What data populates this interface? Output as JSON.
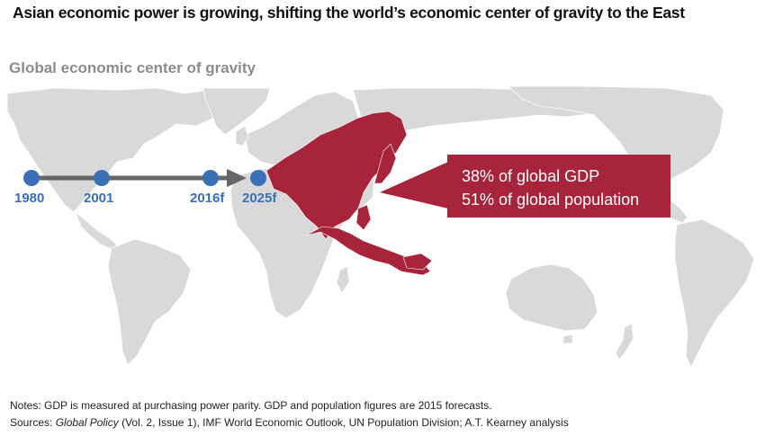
{
  "title": "Asian economic power is growing, shifting the world’s economic center of gravity to the East",
  "subtitle": "Global economic center of gravity",
  "timeline": {
    "points": [
      {
        "label": "1980"
      },
      {
        "label": "2001"
      },
      {
        "label": "2016f"
      },
      {
        "label": "2025f"
      }
    ],
    "color": "#3b6fb6"
  },
  "callout": {
    "line1": "38% of global GDP",
    "line2": "51% of global population",
    "color": "#a8243a"
  },
  "map": {
    "land_color": "#d9d9d9",
    "highlight_color": "#a8243a",
    "highlighted_region": "Asia"
  },
  "notes": {
    "line1": "Notes: GDP is measured at purchasing power parity. GDP and population figures are 2015 forecasts.",
    "sources_prefix": "Sources: ",
    "sources_italic": "Global Policy",
    "sources_rest": " (Vol. 2, Issue 1), IMF World Economic Outlook, UN Population Division; A.T. Kearney analysis"
  }
}
